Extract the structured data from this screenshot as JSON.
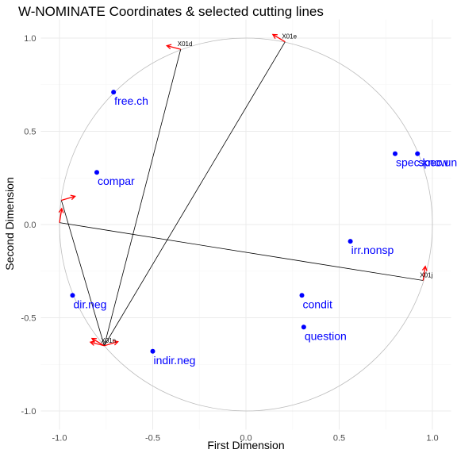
{
  "chart_data": {
    "type": "scatter",
    "title": "W-NOMINATE Coordinates & selected cutting lines",
    "xlabel": "First Dimension",
    "ylabel": "Second Dimension",
    "xlim": [
      -1.1,
      1.1
    ],
    "ylim": [
      -1.1,
      1.1
    ],
    "x_ticks": [
      -1.0,
      -0.5,
      0.0,
      0.5,
      1.0
    ],
    "x_tick_labels": [
      "-1.0",
      "-0.5",
      "0.0",
      "0.5",
      "1.0"
    ],
    "y_ticks": [
      -1.0,
      -0.5,
      0.0,
      0.5,
      1.0
    ],
    "y_tick_labels": [
      "-1.0",
      "-0.5",
      "0.0",
      "0.5",
      "1.0"
    ],
    "grid": true,
    "unit_circle": true,
    "point_color": "#0000ff",
    "arrow_color": "#ff0000",
    "line_color": "#000000",
    "circle_color": "#bdbdbd",
    "points": [
      {
        "label": "free.ch",
        "x": -0.71,
        "y": 0.71
      },
      {
        "label": "compar",
        "x": -0.8,
        "y": 0.28
      },
      {
        "label": "spec.know",
        "x": 0.8,
        "y": 0.38
      },
      {
        "label": "spec.unkn",
        "x": 0.92,
        "y": 0.38
      },
      {
        "label": "irr.nonsp",
        "x": 0.56,
        "y": -0.09
      },
      {
        "label": "dir.neg",
        "x": -0.93,
        "y": -0.38
      },
      {
        "label": "condit",
        "x": 0.3,
        "y": -0.38
      },
      {
        "label": "question",
        "x": 0.31,
        "y": -0.55
      },
      {
        "label": "indir.neg",
        "x": -0.5,
        "y": -0.68
      }
    ],
    "cutting_lines": [
      {
        "label": "X01d",
        "x1": -0.35,
        "y1": 0.94,
        "x2": -0.76,
        "y2": -0.65
      },
      {
        "label": "X01e",
        "x1": 0.21,
        "y1": 0.98,
        "x2": -0.76,
        "y2": -0.65
      },
      {
        "label": "X01j",
        "x1": 0.95,
        "y1": -0.3,
        "x2": -1.0,
        "y2": 0.01
      },
      {
        "label": "X01n",
        "x1": -0.76,
        "y1": -0.65,
        "x2": -0.99,
        "y2": 0.13
      }
    ]
  }
}
